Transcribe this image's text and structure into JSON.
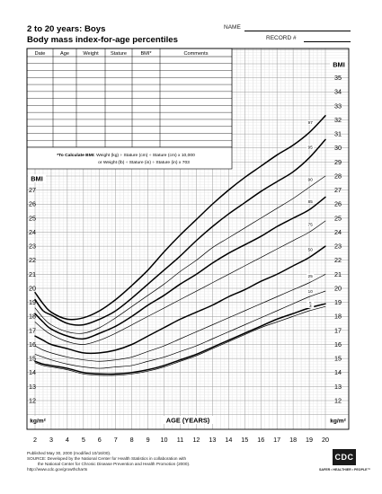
{
  "header": {
    "title_line1": "2 to 20 years: Boys",
    "title_line2": "Body mass index-for-age percentiles",
    "name_label": "NAME",
    "record_label": "RECORD #"
  },
  "record_table": {
    "columns": [
      "Date",
      "Age",
      "Weight",
      "Stature",
      "BMI*",
      "Comments"
    ],
    "row_count": 13
  },
  "formula": {
    "label": "*To Calculate BMI:",
    "line1": " Weight (kg) ÷ Stature (cm) ÷ Stature (cm) x 10,000",
    "line2": "or Weight (lb) ÷ Stature (in) ÷ Stature (in) x 703"
  },
  "chart_data": {
    "type": "line",
    "title": "Body mass index-for-age percentiles",
    "xlabel": "AGE (YEARS)",
    "ylabel_left": "BMI",
    "ylabel_right": "BMI",
    "unit_left": "kg/m²",
    "unit_right": "kg/m²",
    "xlim": [
      2,
      20
    ],
    "ylim": [
      12,
      36
    ],
    "x_ticks": [
      2,
      3,
      4,
      5,
      6,
      7,
      8,
      9,
      10,
      11,
      12,
      13,
      14,
      15,
      16,
      17,
      18,
      19,
      20
    ],
    "y_ticks_left": [
      12,
      13,
      14,
      15,
      16,
      17,
      18,
      19,
      20,
      21,
      22,
      23,
      24,
      25,
      26,
      27
    ],
    "y_ticks_right": [
      12,
      13,
      14,
      15,
      16,
      17,
      18,
      19,
      20,
      21,
      22,
      23,
      24,
      25,
      26,
      27,
      28,
      29,
      30,
      31,
      32,
      33,
      34,
      35
    ],
    "grid": true,
    "x": [
      2,
      2.5,
      3,
      4,
      5,
      6,
      7,
      8,
      9,
      10,
      11,
      12,
      13,
      14,
      15,
      16,
      17,
      18,
      19,
      20
    ],
    "series": [
      {
        "name": "97",
        "bold": true,
        "values": [
          19.7,
          18.9,
          18.3,
          17.8,
          17.9,
          18.4,
          19.2,
          20.2,
          21.3,
          22.6,
          23.8,
          24.9,
          26.0,
          27.0,
          27.9,
          28.7,
          29.5,
          30.2,
          31.1,
          32.3
        ]
      },
      {
        "name": "95",
        "bold": true,
        "values": [
          19.2,
          18.4,
          18.1,
          17.5,
          17.4,
          17.8,
          18.4,
          19.3,
          20.3,
          21.3,
          22.3,
          23.4,
          24.4,
          25.3,
          26.1,
          26.9,
          27.6,
          28.3,
          29.3,
          30.6
        ]
      },
      {
        "name": "90",
        "bold": false,
        "values": [
          18.6,
          17.9,
          17.4,
          16.9,
          16.8,
          17.2,
          17.9,
          18.7,
          19.5,
          20.3,
          21.2,
          22.0,
          22.9,
          23.6,
          24.3,
          25.0,
          25.7,
          26.4,
          27.2,
          28.0
        ]
      },
      {
        "name": "85",
        "bold": true,
        "values": [
          18.2,
          17.6,
          17.1,
          16.6,
          16.4,
          16.8,
          17.3,
          18.0,
          18.8,
          19.5,
          20.3,
          21.0,
          21.8,
          22.5,
          23.1,
          23.7,
          24.4,
          25.0,
          25.6,
          26.5
        ]
      },
      {
        "name": "75",
        "bold": false,
        "values": [
          17.6,
          17.1,
          16.7,
          16.2,
          16.0,
          16.3,
          16.8,
          17.4,
          18.0,
          18.6,
          19.2,
          19.8,
          20.4,
          21.0,
          21.6,
          22.2,
          22.8,
          23.4,
          24.0,
          24.8
        ]
      },
      {
        "name": "50",
        "bold": true,
        "values": [
          16.6,
          16.3,
          16.0,
          15.7,
          15.4,
          15.4,
          15.6,
          16.0,
          16.6,
          17.2,
          17.8,
          18.3,
          18.8,
          19.4,
          19.9,
          20.5,
          21.0,
          21.6,
          22.2,
          23.0
        ]
      },
      {
        "name": "25",
        "bold": false,
        "values": [
          15.9,
          15.6,
          15.4,
          15.1,
          14.9,
          14.8,
          14.9,
          15.1,
          15.5,
          15.9,
          16.4,
          16.9,
          17.4,
          17.9,
          18.4,
          18.9,
          19.4,
          19.9,
          20.4,
          21.0
        ]
      },
      {
        "name": "10",
        "bold": false,
        "values": [
          15.3,
          15.1,
          14.9,
          14.6,
          14.4,
          14.3,
          14.4,
          14.5,
          14.8,
          15.1,
          15.5,
          15.9,
          16.4,
          16.9,
          17.4,
          17.9,
          18.4,
          18.9,
          19.4,
          19.8
        ]
      },
      {
        "name": "5",
        "bold": true,
        "values": [
          14.8,
          14.6,
          14.5,
          14.3,
          14.0,
          13.9,
          13.9,
          14.0,
          14.2,
          14.5,
          14.9,
          15.3,
          15.8,
          16.3,
          16.8,
          17.3,
          17.8,
          18.2,
          18.6,
          18.9
        ]
      },
      {
        "name": "3",
        "bold": false,
        "values": [
          14.7,
          14.5,
          14.4,
          14.2,
          13.9,
          13.8,
          13.8,
          13.9,
          14.1,
          14.4,
          14.8,
          15.2,
          15.7,
          16.2,
          16.7,
          17.2,
          17.6,
          18.0,
          18.4,
          18.7
        ]
      }
    ]
  },
  "footer": {
    "line1": "Published May 30, 2000 (modified 10/16/00).",
    "line2": "SOURCE: Developed by the National Center for Health Statistics in collaboration with",
    "line3": "the National Center for Chronic Disease Prevention and Health Promotion (2000).",
    "line4": "http://www.cdc.gov/growthcharts"
  },
  "logo": {
    "text": "CDC",
    "tagline": "SAFER • HEALTHIER • PEOPLE™"
  }
}
